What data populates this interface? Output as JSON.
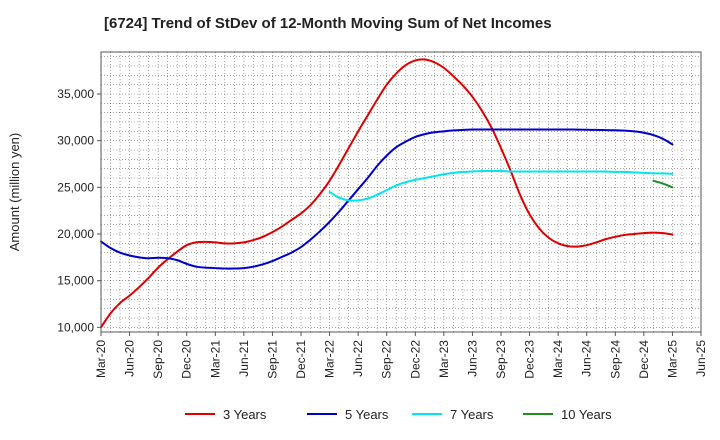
{
  "chart_data": {
    "type": "line",
    "title": "[6724]  Trend of StDev of 12-Month Moving Sum of Net Incomes",
    "xlabel": "",
    "ylabel": "Amount (million yen)",
    "ylim": [
      9500,
      39500
    ],
    "yticks": [
      10000,
      15000,
      20000,
      25000,
      30000,
      35000
    ],
    "ytick_labels": [
      "10,000",
      "15,000",
      "20,000",
      "25,000",
      "30,000",
      "35,000"
    ],
    "xlim": [
      "2020-03",
      "2025-06"
    ],
    "xticks": [
      "Mar-20",
      "Jun-20",
      "Sep-20",
      "Dec-20",
      "Mar-21",
      "Jun-21",
      "Sep-21",
      "Dec-21",
      "Mar-22",
      "Jun-22",
      "Sep-22",
      "Dec-22",
      "Mar-23",
      "Jun-23",
      "Sep-23",
      "Dec-23",
      "Mar-24",
      "Jun-24",
      "Sep-24",
      "Dec-24",
      "Mar-25",
      "Jun-25"
    ],
    "grid": true,
    "legend_position": "bottom",
    "series": [
      {
        "name": "3 Years",
        "color": "#dd0000",
        "points": [
          [
            "2020-03",
            10000
          ],
          [
            "2020-04",
            11500
          ],
          [
            "2020-05",
            12600
          ],
          [
            "2020-06",
            13400
          ],
          [
            "2020-07",
            14300
          ],
          [
            "2020-08",
            15300
          ],
          [
            "2020-09",
            16400
          ],
          [
            "2020-10",
            17300
          ],
          [
            "2020-11",
            18100
          ],
          [
            "2020-12",
            18800
          ],
          [
            "2021-01",
            19100
          ],
          [
            "2021-02",
            19150
          ],
          [
            "2021-03",
            19100
          ],
          [
            "2021-04",
            19000
          ],
          [
            "2021-05",
            19000
          ],
          [
            "2021-06",
            19100
          ],
          [
            "2021-07",
            19350
          ],
          [
            "2021-08",
            19700
          ],
          [
            "2021-09",
            20200
          ],
          [
            "2021-10",
            20800
          ],
          [
            "2021-11",
            21500
          ],
          [
            "2021-12",
            22200
          ],
          [
            "2022-01",
            23100
          ],
          [
            "2022-02",
            24300
          ],
          [
            "2022-03",
            25700
          ],
          [
            "2022-04",
            27400
          ],
          [
            "2022-05",
            29200
          ],
          [
            "2022-06",
            31000
          ],
          [
            "2022-07",
            32700
          ],
          [
            "2022-08",
            34400
          ],
          [
            "2022-09",
            36000
          ],
          [
            "2022-10",
            37200
          ],
          [
            "2022-11",
            38100
          ],
          [
            "2022-12",
            38600
          ],
          [
            "2023-01",
            38700
          ],
          [
            "2023-02",
            38400
          ],
          [
            "2023-03",
            37800
          ],
          [
            "2023-04",
            36900
          ],
          [
            "2023-05",
            35900
          ],
          [
            "2023-06",
            34700
          ],
          [
            "2023-07",
            33200
          ],
          [
            "2023-08",
            31400
          ],
          [
            "2023-09",
            29200
          ],
          [
            "2023-10",
            26800
          ],
          [
            "2023-11",
            24200
          ],
          [
            "2023-12",
            22100
          ],
          [
            "2024-01",
            20600
          ],
          [
            "2024-02",
            19600
          ],
          [
            "2024-03",
            19000
          ],
          [
            "2024-04",
            18700
          ],
          [
            "2024-05",
            18650
          ],
          [
            "2024-06",
            18800
          ],
          [
            "2024-07",
            19100
          ],
          [
            "2024-08",
            19450
          ],
          [
            "2024-09",
            19700
          ],
          [
            "2024-10",
            19900
          ],
          [
            "2024-11",
            20000
          ],
          [
            "2024-12",
            20100
          ],
          [
            "2025-01",
            20150
          ],
          [
            "2025-02",
            20100
          ],
          [
            "2025-03",
            19950
          ]
        ]
      },
      {
        "name": "5 Years",
        "color": "#0000cc",
        "points": [
          [
            "2020-03",
            19200
          ],
          [
            "2020-04",
            18500
          ],
          [
            "2020-05",
            18000
          ],
          [
            "2020-06",
            17700
          ],
          [
            "2020-07",
            17500
          ],
          [
            "2020-08",
            17400
          ],
          [
            "2020-09",
            17450
          ],
          [
            "2020-10",
            17400
          ],
          [
            "2020-11",
            17200
          ],
          [
            "2020-12",
            16800
          ],
          [
            "2021-01",
            16500
          ],
          [
            "2021-02",
            16400
          ],
          [
            "2021-03",
            16350
          ],
          [
            "2021-04",
            16300
          ],
          [
            "2021-05",
            16300
          ],
          [
            "2021-06",
            16350
          ],
          [
            "2021-07",
            16500
          ],
          [
            "2021-08",
            16750
          ],
          [
            "2021-09",
            17100
          ],
          [
            "2021-10",
            17550
          ],
          [
            "2021-11",
            18000
          ],
          [
            "2021-12",
            18600
          ],
          [
            "2022-01",
            19400
          ],
          [
            "2022-02",
            20300
          ],
          [
            "2022-03",
            21300
          ],
          [
            "2022-04",
            22400
          ],
          [
            "2022-05",
            23600
          ],
          [
            "2022-06",
            24800
          ],
          [
            "2022-07",
            26000
          ],
          [
            "2022-08",
            27300
          ],
          [
            "2022-09",
            28400
          ],
          [
            "2022-10",
            29300
          ],
          [
            "2022-11",
            29900
          ],
          [
            "2022-12",
            30400
          ],
          [
            "2023-01",
            30700
          ],
          [
            "2023-02",
            30900
          ],
          [
            "2023-03",
            31000
          ],
          [
            "2023-04",
            31100
          ],
          [
            "2023-05",
            31150
          ],
          [
            "2023-06",
            31200
          ],
          [
            "2023-07",
            31200
          ],
          [
            "2023-08",
            31200
          ],
          [
            "2023-09",
            31200
          ],
          [
            "2023-10",
            31200
          ],
          [
            "2023-11",
            31200
          ],
          [
            "2023-12",
            31200
          ],
          [
            "2024-01",
            31200
          ],
          [
            "2024-02",
            31200
          ],
          [
            "2024-03",
            31200
          ],
          [
            "2024-04",
            31200
          ],
          [
            "2024-05",
            31180
          ],
          [
            "2024-06",
            31170
          ],
          [
            "2024-07",
            31150
          ],
          [
            "2024-08",
            31130
          ],
          [
            "2024-09",
            31110
          ],
          [
            "2024-10",
            31080
          ],
          [
            "2024-11",
            31000
          ],
          [
            "2024-12",
            30850
          ],
          [
            "2025-01",
            30600
          ],
          [
            "2025-02",
            30200
          ],
          [
            "2025-03",
            29600
          ]
        ]
      },
      {
        "name": "7 Years",
        "color": "#00e5ee",
        "points": [
          [
            "2022-03",
            24500
          ],
          [
            "2022-04",
            23900
          ],
          [
            "2022-05",
            23600
          ],
          [
            "2022-06",
            23600
          ],
          [
            "2022-07",
            23800
          ],
          [
            "2022-08",
            24200
          ],
          [
            "2022-09",
            24700
          ],
          [
            "2022-10",
            25200
          ],
          [
            "2022-11",
            25550
          ],
          [
            "2022-12",
            25800
          ],
          [
            "2023-01",
            26000
          ],
          [
            "2023-02",
            26200
          ],
          [
            "2023-03",
            26400
          ],
          [
            "2023-04",
            26550
          ],
          [
            "2023-05",
            26650
          ],
          [
            "2023-06",
            26700
          ],
          [
            "2023-07",
            26750
          ],
          [
            "2023-08",
            26750
          ],
          [
            "2023-09",
            26750
          ],
          [
            "2023-10",
            26700
          ],
          [
            "2023-11",
            26700
          ],
          [
            "2023-12",
            26700
          ],
          [
            "2024-01",
            26700
          ],
          [
            "2024-02",
            26700
          ],
          [
            "2024-03",
            26700
          ],
          [
            "2024-04",
            26700
          ],
          [
            "2024-05",
            26700
          ],
          [
            "2024-06",
            26700
          ],
          [
            "2024-07",
            26700
          ],
          [
            "2024-08",
            26700
          ],
          [
            "2024-09",
            26650
          ],
          [
            "2024-10",
            26650
          ],
          [
            "2024-11",
            26600
          ],
          [
            "2024-12",
            26550
          ],
          [
            "2025-01",
            26500
          ],
          [
            "2025-02",
            26500
          ],
          [
            "2025-03",
            26450
          ]
        ]
      },
      {
        "name": "10 Years",
        "color": "#228b22",
        "points": [
          [
            "2025-01",
            25700
          ],
          [
            "2025-02",
            25400
          ],
          [
            "2025-03",
            25000
          ]
        ]
      }
    ]
  }
}
